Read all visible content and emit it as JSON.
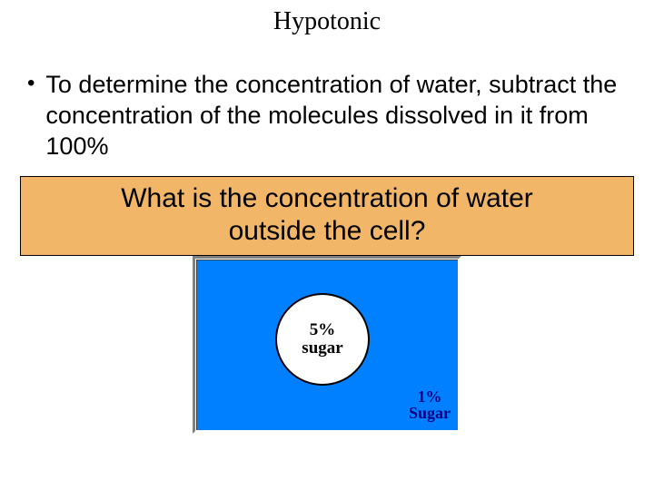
{
  "title": "Hypotonic",
  "bullet": {
    "text": "To determine the concentration of water, subtract the concentration of the molecules dissolved in it from 100%"
  },
  "question": {
    "line1": "What is the concentration of water",
    "line2": "outside the cell?",
    "background_color": "#f2b669"
  },
  "diagram": {
    "background_color": "#0080ff",
    "cell": {
      "percent": "5%",
      "substance": "sugar",
      "fill_color": "#ffffff",
      "border_color": "#000000"
    },
    "solution": {
      "percent": "1%",
      "substance": "Sugar",
      "text_color": "#000080"
    }
  }
}
